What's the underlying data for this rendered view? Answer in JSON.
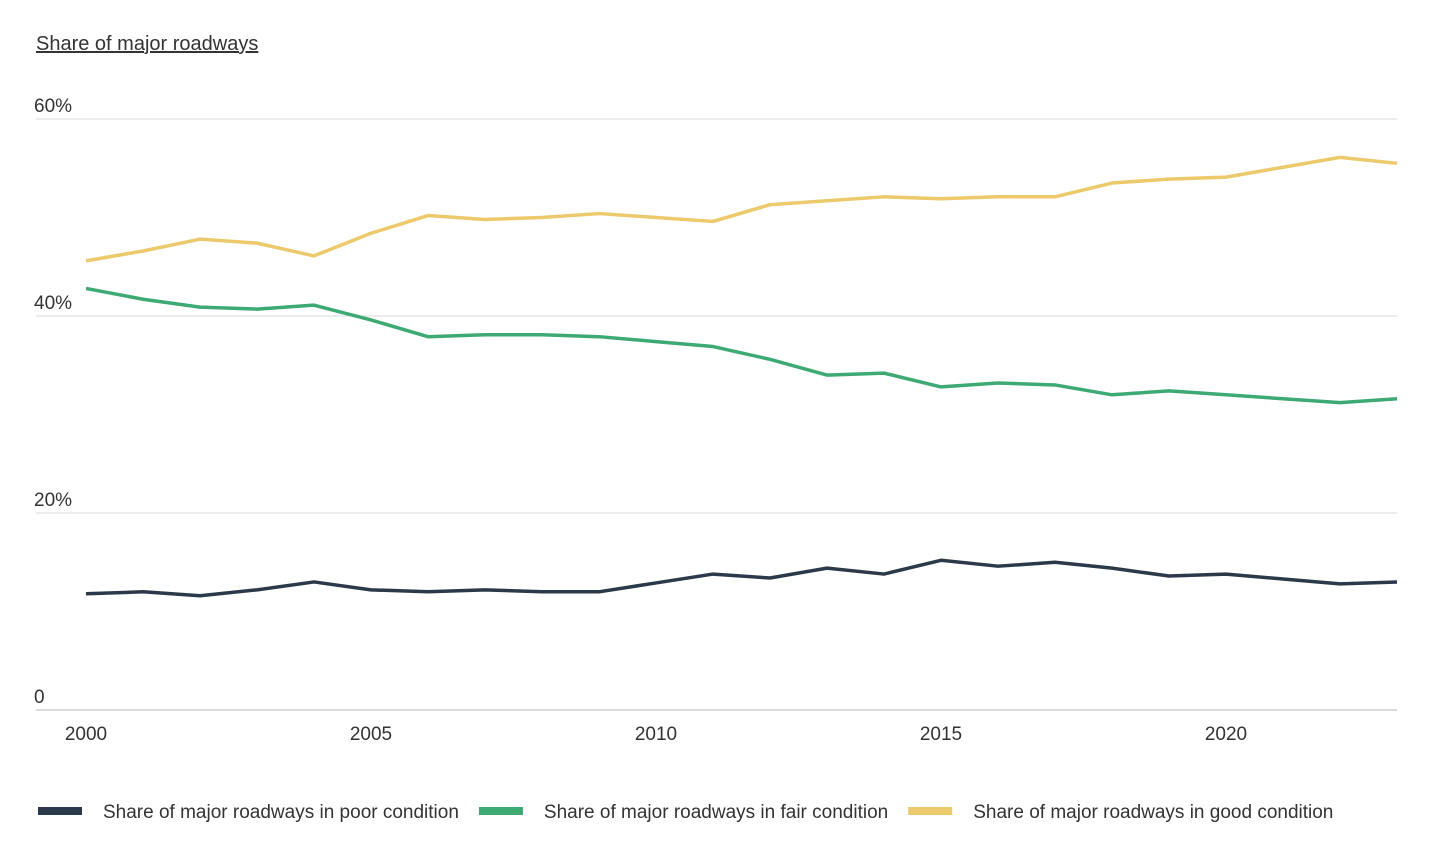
{
  "chart_data": {
    "type": "line",
    "title": "Share of major roadways",
    "xlabel": "",
    "ylabel": "",
    "xlim": [
      2000,
      2023
    ],
    "ylim": [
      0,
      60
    ],
    "grid": true,
    "legend_position": "bottom",
    "x_ticks": [
      2000,
      2005,
      2010,
      2015,
      2020
    ],
    "x_tick_labels": [
      "2000",
      "2005",
      "2010",
      "2015",
      "2020"
    ],
    "y_ticks": [
      0,
      20,
      40,
      60
    ],
    "y_tick_labels": [
      "0",
      "20%",
      "40%",
      "60%"
    ],
    "x": [
      2000,
      2001,
      2002,
      2003,
      2004,
      2005,
      2006,
      2007,
      2008,
      2009,
      2010,
      2011,
      2012,
      2013,
      2014,
      2015,
      2016,
      2017,
      2018,
      2019,
      2020,
      2021,
      2022,
      2023
    ],
    "series": [
      {
        "name": "Share of major roadways in poor condition",
        "color": "#2b3a4a",
        "values": [
          11.8,
          12.0,
          11.6,
          12.2,
          13.0,
          12.2,
          12.0,
          12.2,
          12.0,
          12.0,
          12.9,
          13.8,
          13.4,
          14.4,
          13.8,
          15.2,
          14.6,
          15.0,
          14.4,
          13.6,
          13.8,
          13.3,
          12.8,
          13.0
        ],
        "value_labels": [
          "11.8%",
          "12.0%",
          "11.6%",
          "12.2%",
          "13.0%",
          "12.2%",
          "12.0%",
          "12.2%",
          "12.0%",
          "12.0%",
          "12.9%",
          "13.8%",
          "13.4%",
          "14.4%",
          "13.8%",
          "15.2%",
          "14.6%",
          "15.0%",
          "14.4%",
          "13.6%",
          "13.8%",
          "13.3%",
          "12.8%",
          "13.0%"
        ]
      },
      {
        "name": "Share of major roadways in fair condition",
        "color": "#3daa74",
        "values": [
          42.8,
          41.7,
          40.9,
          40.7,
          41.1,
          39.6,
          37.9,
          38.1,
          38.1,
          37.9,
          37.4,
          36.9,
          35.6,
          34.0,
          34.2,
          32.8,
          33.2,
          33.0,
          32.0,
          32.4,
          32.0,
          31.6,
          31.2,
          31.6
        ],
        "value_labels": [
          "42.8%",
          "41.7%",
          "40.9%",
          "40.7%",
          "41.1%",
          "39.6%",
          "37.9%",
          "38.1%",
          "38.1%",
          "37.9%",
          "37.4%",
          "36.9%",
          "35.6%",
          "34.0%",
          "34.2%",
          "32.8%",
          "33.2%",
          "33.0%",
          "32.0%",
          "32.4%",
          "32.0%",
          "31.6%",
          "31.2%",
          "31.6%"
        ]
      },
      {
        "name": "Share of major roadways in good condition",
        "color": "#ecc96a",
        "values": [
          45.6,
          46.6,
          47.8,
          47.4,
          46.1,
          48.4,
          50.2,
          49.8,
          50.0,
          50.4,
          50.0,
          49.6,
          51.3,
          51.7,
          52.1,
          51.9,
          52.1,
          52.1,
          53.5,
          53.9,
          54.1,
          55.1,
          56.1,
          55.5
        ],
        "value_labels": [
          "45.6%",
          "46.6%",
          "47.8%",
          "47.4%",
          "46.1%",
          "48.4%",
          "50.2%",
          "49.8%",
          "50.0%",
          "50.4%",
          "50.0%",
          "49.6%",
          "51.3%",
          "51.7%",
          "52.1%",
          "51.9%",
          "52.1%",
          "52.1%",
          "53.5%",
          "53.9%",
          "54.1%",
          "55.1%",
          "56.1%",
          "55.5%"
        ]
      }
    ]
  }
}
